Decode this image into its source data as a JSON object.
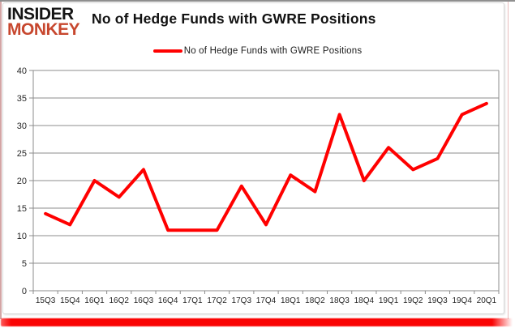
{
  "logo": {
    "line1": "INSIDER",
    "line2": "MONKEY"
  },
  "header": {
    "title": "No of Hedge Funds with GWRE Positions"
  },
  "legend": {
    "label": "No of Hedge Funds with GWRE Positions"
  },
  "chart_data": {
    "type": "line",
    "title": "No of Hedge Funds with GWRE Positions",
    "categories": [
      "15Q3",
      "15Q4",
      "16Q1",
      "16Q2",
      "16Q3",
      "16Q4",
      "17Q1",
      "17Q2",
      "17Q3",
      "17Q4",
      "18Q1",
      "18Q2",
      "18Q3",
      "18Q4",
      "19Q1",
      "19Q2",
      "19Q3",
      "19Q4",
      "20Q1"
    ],
    "series": [
      {
        "name": "No of Hedge Funds with GWRE Positions",
        "values": [
          14,
          12,
          20,
          17,
          22,
          11,
          11,
          11,
          19,
          12,
          21,
          18,
          32,
          20,
          26,
          22,
          24,
          32,
          34
        ]
      }
    ],
    "xlabel": "",
    "ylabel": "",
    "ylim": [
      0,
      40
    ],
    "ytick_step": 5,
    "grid": true,
    "legend_position": "top-center",
    "line_color": "#ff0000"
  },
  "colors": {
    "line_red": "#ff0000",
    "logo_red": "#c7472e",
    "grid_gray": "#8c8c8c",
    "ribbon_red": "#fa0404",
    "text_dark": "#262626"
  }
}
